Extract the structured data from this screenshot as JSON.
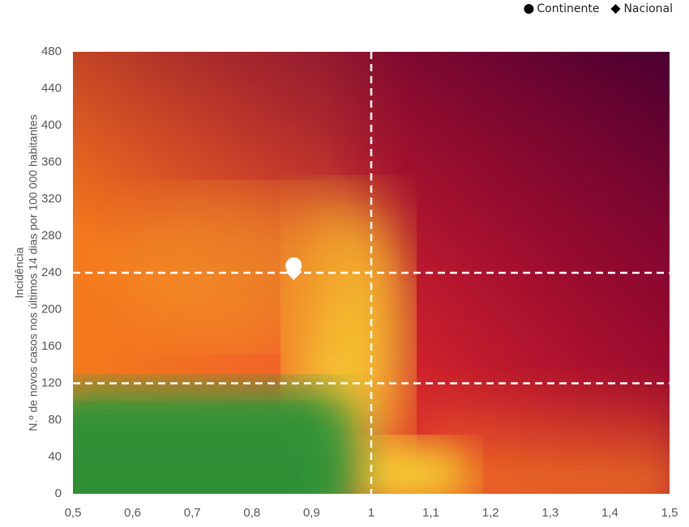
{
  "chart_data": {
    "type": "scatter",
    "y_label_lines": [
      "Incidência",
      "N.º de novos casos nos últimos 14 dias por 100 000 habitantes"
    ],
    "series": [
      {
        "name": "Continente",
        "marker": "circle",
        "color": "#ffffff",
        "x": [
          0.87
        ],
        "values": [
          248
        ]
      },
      {
        "name": "Nacional",
        "marker": "diamond",
        "color": "#ffffff",
        "x": [
          0.87
        ],
        "values": [
          241
        ]
      }
    ],
    "reference_lines": {
      "x": [
        1
      ],
      "y": [
        240,
        120
      ]
    },
    "xlim": [
      0.5,
      1.5
    ],
    "xticks": [
      {
        "value": 0.5,
        "label": "0,5"
      },
      {
        "value": 0.6,
        "label": "0,6"
      },
      {
        "value": 0.7,
        "label": "0,7"
      },
      {
        "value": 0.8,
        "label": "0,8"
      },
      {
        "value": 0.9,
        "label": "0,9"
      },
      1,
      {
        "value": 1.1,
        "label": "1,1"
      },
      {
        "value": 1.2,
        "label": "1,2"
      },
      {
        "value": 1.3,
        "label": "1,3"
      },
      {
        "value": 1.4,
        "label": "1,4"
      },
      {
        "value": 1.5,
        "label": "1,5"
      }
    ],
    "ylim": [
      0,
      480
    ],
    "yticks": [
      0,
      40,
      80,
      120,
      160,
      200,
      240,
      280,
      320,
      360,
      400,
      440,
      480
    ],
    "legend_position": "top-right"
  }
}
